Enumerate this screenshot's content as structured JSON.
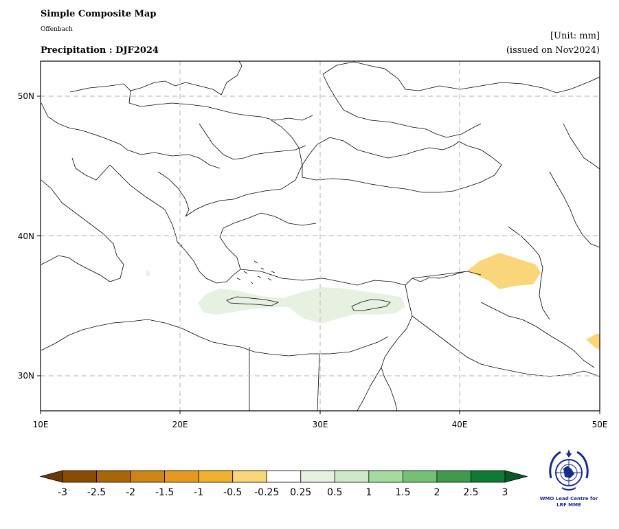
{
  "header": {
    "title": "Simple Composite Map",
    "subtitle": "Offenbach",
    "field": "Precipitation : DJF2024",
    "unit": "[Unit: mm]",
    "issued": "(issued on Nov2024)"
  },
  "map": {
    "lon_range": [
      10,
      50
    ],
    "lat_range": [
      27.5,
      52.5
    ],
    "x_ticks": [
      "10E",
      "20E",
      "30E",
      "40E",
      "50E"
    ],
    "y_ticks": [
      "30N",
      "40N",
      "50N"
    ],
    "grid": true,
    "anomaly_patches": [
      {
        "name": "eastern-mediterranean-wet",
        "category": "0.25 to 0.5",
        "color": "#e6f1e2"
      },
      {
        "name": "northern-iraq-dry",
        "category": "-0.5 to -0.25",
        "color": "#f9d67a"
      },
      {
        "name": "persian-gulf-dry",
        "category": "-0.5 to -0.25",
        "color": "#f9d67a"
      }
    ]
  },
  "colorbar": {
    "labels": [
      "-3",
      "-2.5",
      "-2",
      "-1.5",
      "-1",
      "-0.5",
      "-0.25",
      "0.25",
      "0.5",
      "1",
      "1.5",
      "2",
      "2.5",
      "3"
    ],
    "colors": [
      "#8a4a04",
      "#a76607",
      "#ce8614",
      "#e7991e",
      "#f0b12c",
      "#f9d67a",
      "#ffffff",
      "#e6f1e2",
      "#cdeac5",
      "#a6dba0",
      "#74c176",
      "#3f9a4d",
      "#0f7a34"
    ],
    "under_color": "#6b3a04",
    "over_color": "#0b5a25"
  },
  "logo": {
    "caption": "WMO Lead Centre for LRF MME",
    "icon": "wmo-emblem-icon"
  }
}
